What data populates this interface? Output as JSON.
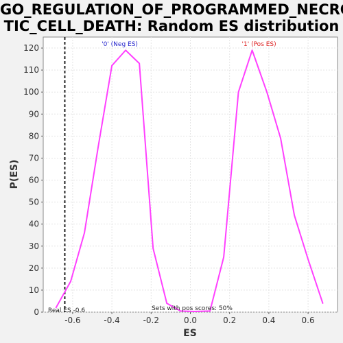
{
  "title": {
    "line1": "GO_REGULATION_OF_PROGRAMMED_NECRO",
    "line2": "TIC_CELL_DEATH: Random ES distribution"
  },
  "chart_data": {
    "type": "line",
    "title": "GO_REGULATION_OF_PROGRAMMED_NECROTIC_CELL_DEATH: Random ES distribution",
    "xlabel": "ES",
    "ylabel": "P(ES)",
    "xlim": [
      -0.75,
      0.75
    ],
    "ylim": [
      0,
      125
    ],
    "xticks": [
      -0.6,
      -0.4,
      -0.2,
      0.0,
      0.2,
      0.4,
      0.6
    ],
    "xtick_labels": [
      "-0.6",
      "-0.4",
      "-0.2",
      "0.0",
      "0.2",
      "0.4",
      "0.6"
    ],
    "yticks": [
      0,
      10,
      20,
      30,
      40,
      50,
      60,
      70,
      80,
      90,
      100,
      110,
      120
    ],
    "ytick_labels": [
      "0",
      "10",
      "20",
      "30",
      "40",
      "50",
      "60",
      "70",
      "80",
      "90",
      "100",
      "110",
      "120"
    ],
    "grid": true,
    "series": [
      {
        "color": "#ff40ff",
        "x": [
          -0.685,
          -0.61,
          -0.54,
          -0.47,
          -0.4,
          -0.33,
          -0.26,
          -0.19,
          -0.12,
          -0.05,
          0.02,
          0.1,
          0.17,
          0.245,
          0.315,
          0.39,
          0.46,
          0.53,
          0.6,
          0.675
        ],
        "y": [
          2,
          14,
          36,
          75,
          112,
          119,
          113,
          29,
          4,
          0.5,
          0.3,
          0.5,
          25,
          100,
          119,
          100,
          79,
          44,
          24,
          4
        ]
      }
    ],
    "real_es": -0.64,
    "real_es_label": "Real ES -0.6",
    "annotations": [
      {
        "text": "'0' (Neg ES)",
        "x": -0.36,
        "color": "#2222cc"
      },
      {
        "text": "'1' (Pos ES)",
        "x": 0.35,
        "color": "#dd2222"
      }
    ],
    "footer_note": "Sets with pos scores: 50%"
  }
}
